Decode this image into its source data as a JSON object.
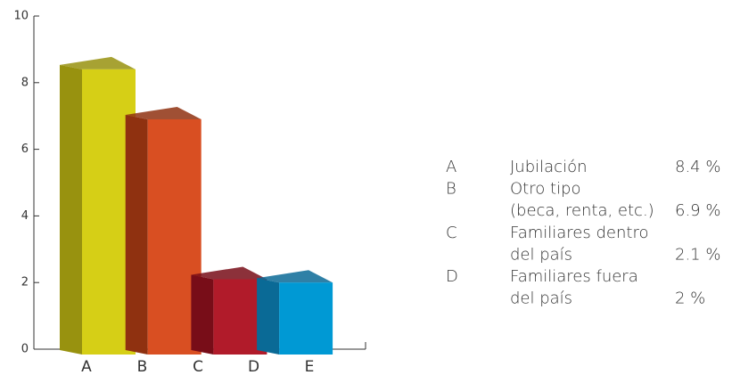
{
  "chart_data": {
    "type": "bar3d",
    "categories": [
      "A",
      "B",
      "C",
      "D",
      "E"
    ],
    "values": [
      8.4,
      6.9,
      2.1,
      2,
      null
    ],
    "value_labels": [
      "8.4 %",
      "6.9 %",
      "2.1 %",
      "2 %",
      null
    ],
    "colors": [
      "#d6cf16",
      "#d94f22",
      "#b11b2a",
      "#0099d4",
      null
    ],
    "side_colors": [
      "#98920f",
      "#8f3110",
      "#780d18",
      "#0a6a96",
      null
    ],
    "legend_labels": [
      [
        "Jubilación"
      ],
      [
        "Otro tipo",
        "(beca, renta, etc.)"
      ],
      [
        "Familiares dentro",
        "del país"
      ],
      [
        "Familiares fuera",
        "del país"
      ]
    ],
    "ylim": [
      0,
      10
    ],
    "yticks": [
      0,
      2,
      4,
      6,
      8,
      10
    ]
  }
}
